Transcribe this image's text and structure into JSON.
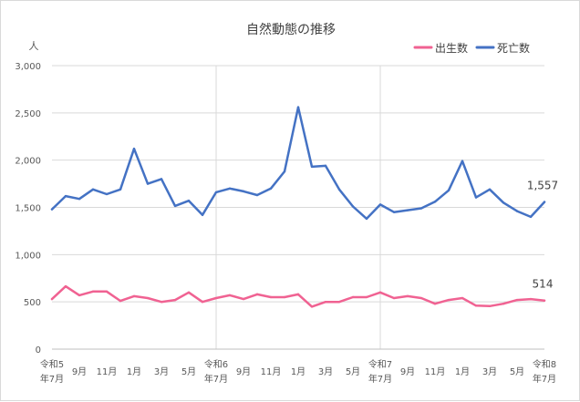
{
  "chart_data": {
    "type": "line",
    "title": "自然動態の推移",
    "ylabel": "人",
    "ylim": [
      0,
      3000
    ],
    "yticks": [
      0,
      500,
      1000,
      1500,
      2000,
      2500,
      3000
    ],
    "ytick_labels": [
      "0",
      "500",
      "1,000",
      "1,500",
      "2,000",
      "2,500",
      "3,000"
    ],
    "x": [
      "令和5年7月",
      "8月",
      "9月",
      "10月",
      "11月",
      "12月",
      "令和6年1月",
      "2月",
      "3月",
      "4月",
      "5月",
      "6月",
      "令和6年7月",
      "8月",
      "9月",
      "10月",
      "11月",
      "12月",
      "令和7年1月",
      "2月",
      "3月",
      "4月",
      "5月",
      "6月",
      "令和7年7月",
      "8月",
      "9月",
      "10月",
      "11月",
      "12月",
      "令和8年1月",
      "2月",
      "3月",
      "4月",
      "5月",
      "6月",
      "令和8年7月"
    ],
    "x_tick_labels": [
      {
        "index": 0,
        "lines": [
          "令和5",
          "年7月"
        ]
      },
      {
        "index": 2,
        "lines": [
          "9月"
        ]
      },
      {
        "index": 4,
        "lines": [
          "11月"
        ]
      },
      {
        "index": 6,
        "lines": [
          "1月"
        ]
      },
      {
        "index": 8,
        "lines": [
          "3月"
        ]
      },
      {
        "index": 10,
        "lines": [
          "5月"
        ]
      },
      {
        "index": 12,
        "lines": [
          "令和6",
          "年7月"
        ]
      },
      {
        "index": 14,
        "lines": [
          "9月"
        ]
      },
      {
        "index": 16,
        "lines": [
          "11月"
        ]
      },
      {
        "index": 18,
        "lines": [
          "1月"
        ]
      },
      {
        "index": 20,
        "lines": [
          "3月"
        ]
      },
      {
        "index": 22,
        "lines": [
          "5月"
        ]
      },
      {
        "index": 24,
        "lines": [
          "令和7",
          "年7月"
        ]
      },
      {
        "index": 26,
        "lines": [
          "9月"
        ]
      },
      {
        "index": 28,
        "lines": [
          "11月"
        ]
      },
      {
        "index": 30,
        "lines": [
          "1月"
        ]
      },
      {
        "index": 32,
        "lines": [
          "3月"
        ]
      },
      {
        "index": 34,
        "lines": [
          "5月"
        ]
      },
      {
        "index": 36,
        "lines": [
          "令和8",
          "年7月"
        ]
      }
    ],
    "year_gridlines_at": [
      12,
      24
    ],
    "legend_position": "top-right",
    "series": [
      {
        "name": "出生数",
        "color": "#f06292",
        "values": [
          530,
          665,
          570,
          610,
          610,
          510,
          560,
          540,
          500,
          520,
          600,
          500,
          540,
          570,
          530,
          580,
          550,
          550,
          580,
          450,
          500,
          500,
          550,
          550,
          600,
          540,
          560,
          540,
          480,
          520,
          540,
          460,
          455,
          480,
          520,
          530,
          514
        ]
      },
      {
        "name": "死亡数",
        "color": "#4472c4",
        "values": [
          1480,
          1620,
          1590,
          1690,
          1640,
          1690,
          2120,
          1750,
          1800,
          1515,
          1570,
          1420,
          1660,
          1700,
          1670,
          1630,
          1700,
          1880,
          2560,
          1930,
          1940,
          1690,
          1510,
          1380,
          1530,
          1450,
          1470,
          1490,
          1560,
          1680,
          1990,
          1605,
          1690,
          1550,
          1460,
          1400,
          1557
        ]
      }
    ],
    "end_labels": [
      {
        "series": 1,
        "text": "1,557"
      },
      {
        "series": 0,
        "text": "514"
      }
    ]
  }
}
